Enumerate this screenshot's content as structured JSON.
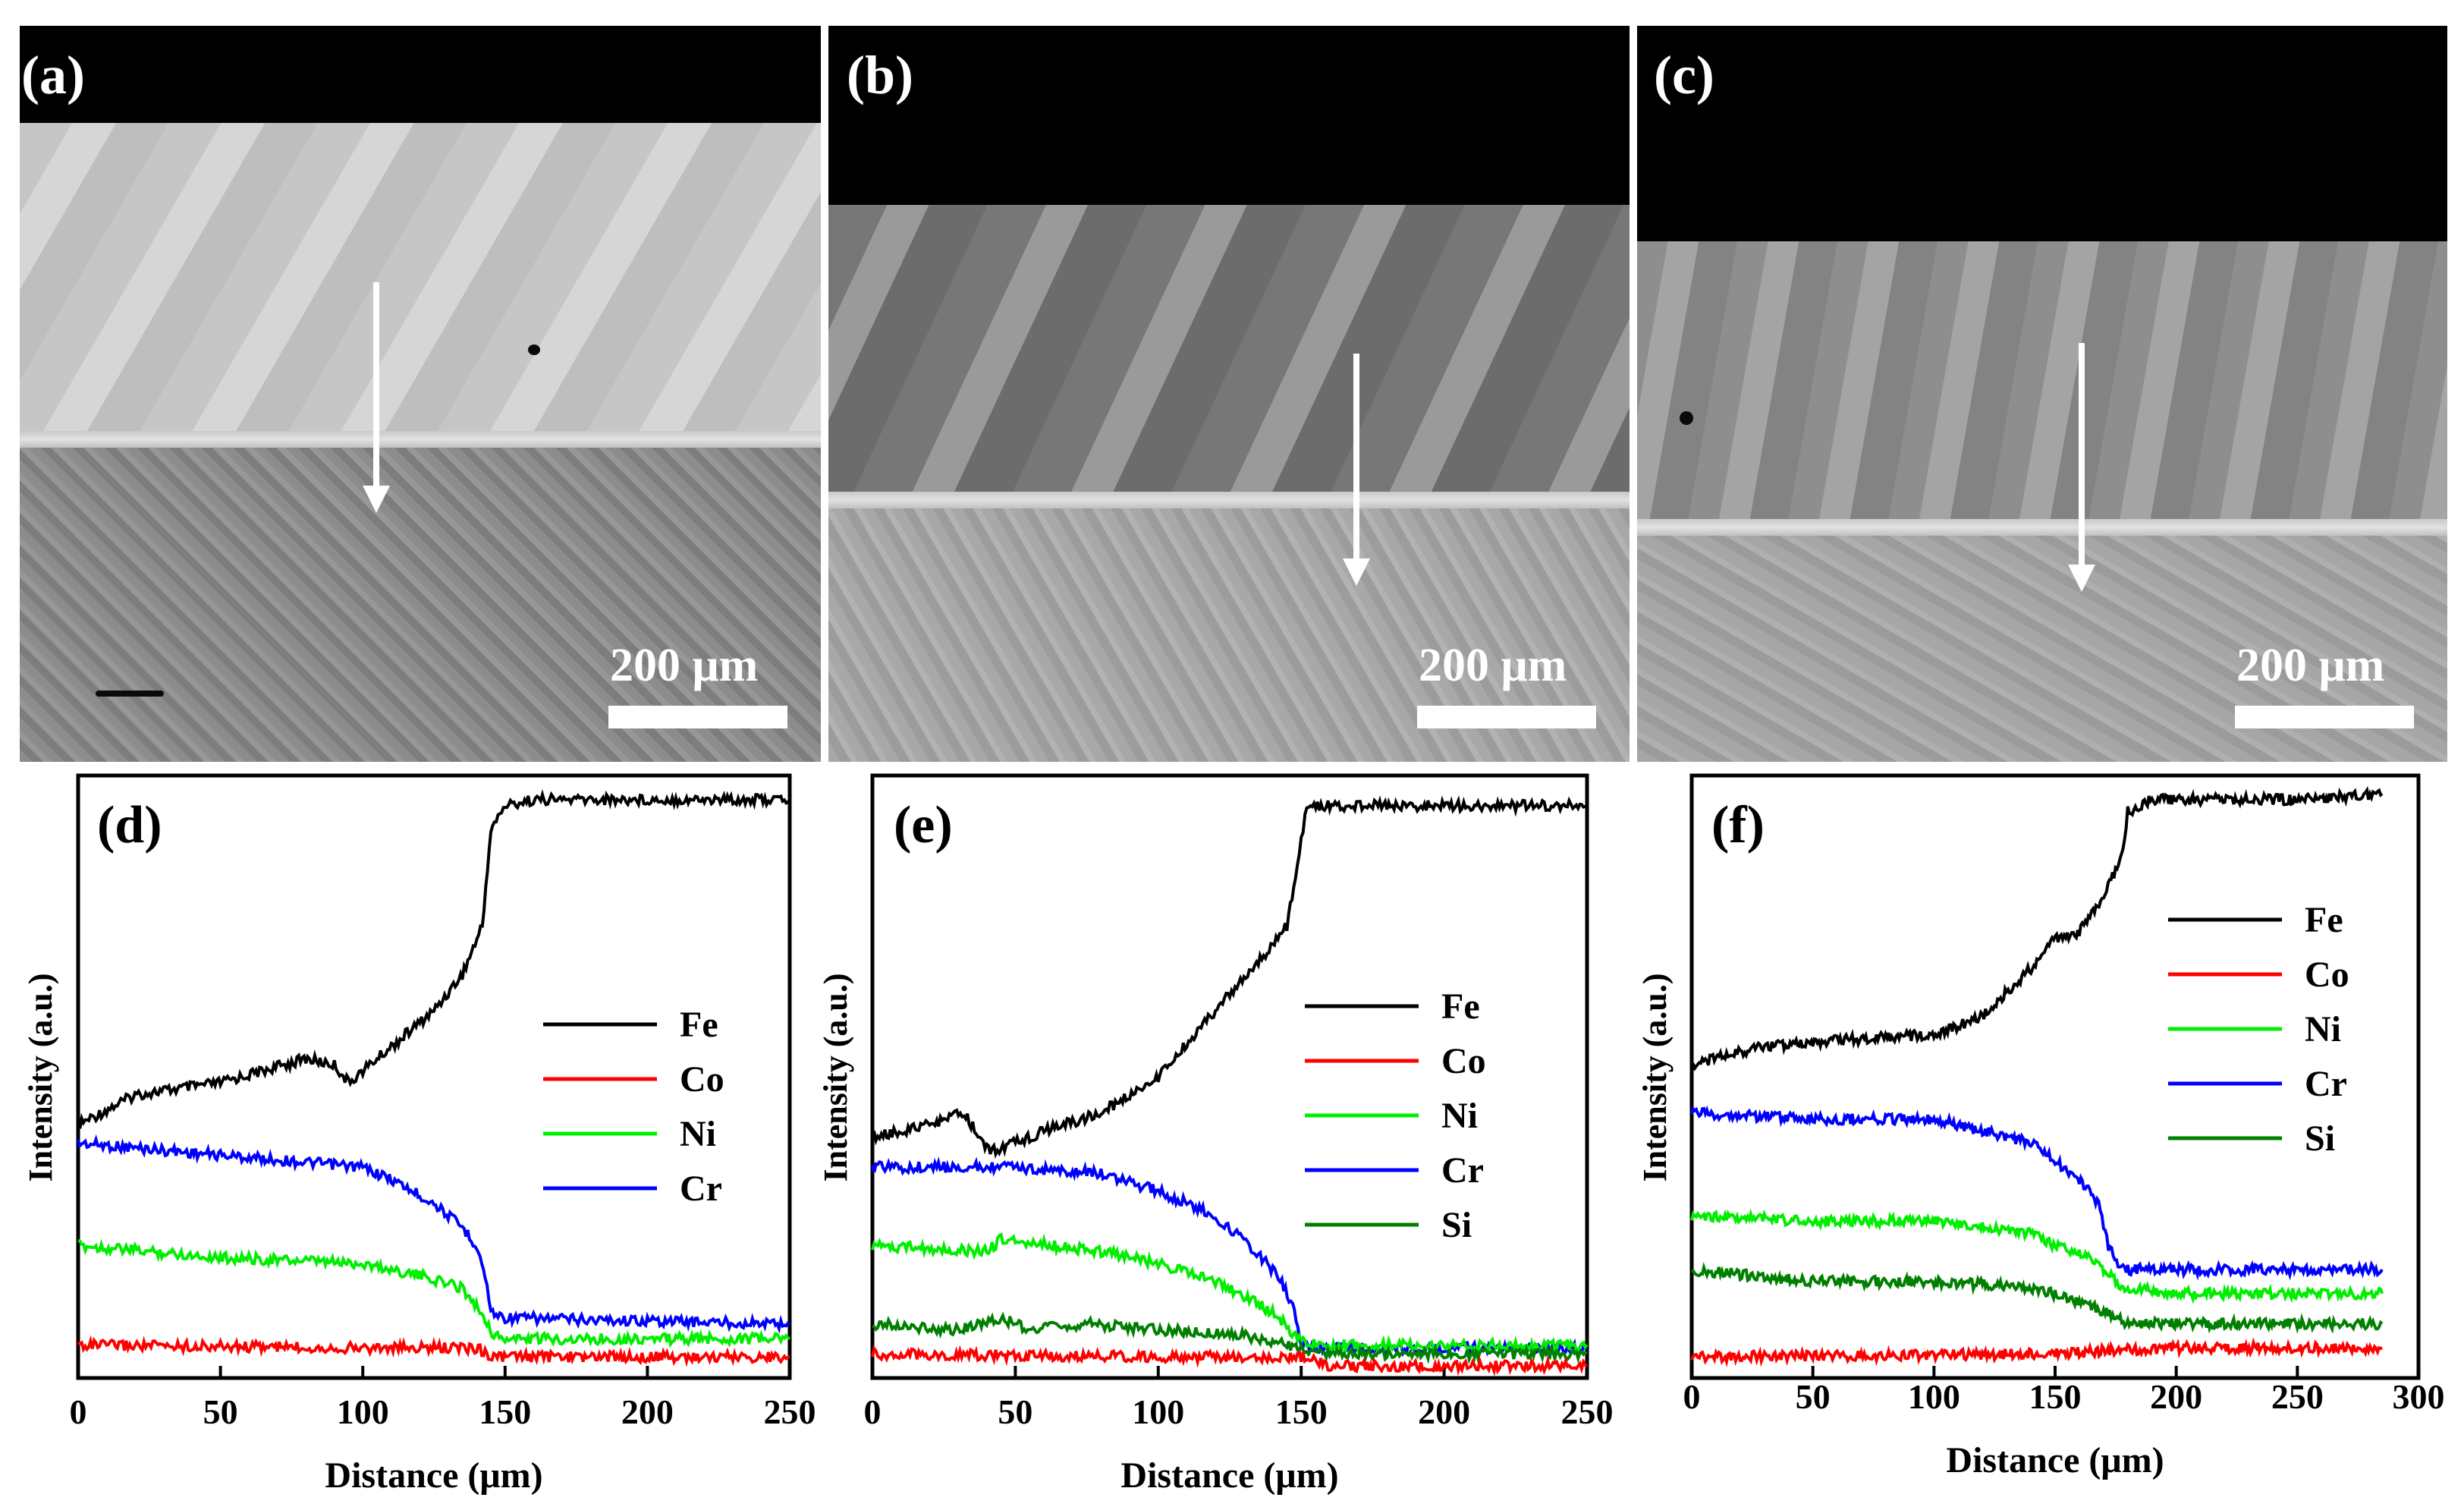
{
  "micrographs": [
    {
      "label": "(a)",
      "scale_bar": "200 μm"
    },
    {
      "label": "(b)",
      "scale_bar": "200 μm"
    },
    {
      "label": "(c)",
      "scale_bar": "200 μm"
    }
  ],
  "chart_data": [
    {
      "type": "line",
      "panel": "(d)",
      "xlabel": "Distance (μm)",
      "ylabel": "Intensity (a.u.)",
      "xlim": [
        0,
        250
      ],
      "ylim": [
        0,
        100
      ],
      "xticks": [
        0,
        50,
        100,
        150,
        200,
        250
      ],
      "legend": [
        "Fe",
        "Co",
        "Ni",
        "Cr"
      ],
      "series": [
        {
          "name": "Fe",
          "color": "#000000",
          "x": [
            0,
            20,
            50,
            80,
            90,
            95,
            110,
            125,
            135,
            142,
            145,
            150,
            160,
            200,
            250
          ],
          "y": [
            42,
            47,
            49,
            53,
            52,
            49,
            55,
            61,
            67,
            75,
            91,
            95,
            96,
            96,
            96
          ]
        },
        {
          "name": "Cr",
          "color": "#0000ff",
          "x": [
            0,
            50,
            100,
            110,
            125,
            135,
            140,
            143,
            145,
            150,
            200,
            250
          ],
          "y": [
            39,
            37,
            35,
            33,
            29,
            25,
            22,
            17,
            11,
            10,
            9.5,
            9
          ]
        },
        {
          "name": "Ni",
          "color": "#00ee00",
          "x": [
            0,
            50,
            100,
            120,
            135,
            143,
            146,
            150,
            200,
            250
          ],
          "y": [
            22,
            20,
            19,
            17,
            15,
            10,
            7,
            6.5,
            6.5,
            6.5
          ]
        },
        {
          "name": "Co",
          "color": "#ff0000",
          "x": [
            0,
            100,
            140,
            146,
            200,
            250
          ],
          "y": [
            5.5,
            5,
            5,
            3.5,
            3.5,
            3.5
          ]
        }
      ]
    },
    {
      "type": "line",
      "panel": "(e)",
      "xlabel": "Distance (μm)",
      "ylabel": "Intensity (a.u.)",
      "xlim": [
        0,
        250
      ],
      "ylim": [
        0,
        100
      ],
      "xticks": [
        0,
        50,
        100,
        150,
        200,
        250
      ],
      "legend": [
        "Fe",
        "Co",
        "Ni",
        "Cr",
        "Si"
      ],
      "series": [
        {
          "name": "Fe",
          "color": "#000000",
          "x": [
            0,
            20,
            32,
            40,
            45,
            60,
            80,
            100,
            120,
            135,
            145,
            148,
            152,
            160,
            200,
            250
          ],
          "y": [
            40,
            42,
            44,
            38,
            38,
            41,
            44,
            50,
            61,
            69,
            75,
            83,
            95,
            95,
            95,
            95
          ]
        },
        {
          "name": "Cr",
          "color": "#0000ff",
          "x": [
            0,
            45,
            80,
            100,
            115,
            130,
            142,
            147,
            150,
            153,
            160,
            250
          ],
          "y": [
            35,
            35,
            34,
            31,
            28,
            23,
            17,
            12,
            6,
            5,
            5,
            5
          ]
        },
        {
          "name": "Ni",
          "color": "#00ee00",
          "x": [
            0,
            40,
            45,
            80,
            100,
            120,
            140,
            148,
            152,
            160,
            250
          ],
          "y": [
            22,
            21,
            23,
            21,
            19,
            16,
            11,
            7,
            6,
            5.5,
            5.5
          ]
        },
        {
          "name": "Si",
          "color": "#008000",
          "x": [
            0,
            30,
            45,
            55,
            75,
            100,
            130,
            150,
            160,
            250
          ],
          "y": [
            9,
            8,
            10,
            8,
            9,
            8,
            7,
            5,
            4,
            4
          ]
        },
        {
          "name": "Co",
          "color": "#ff0000",
          "x": [
            0,
            100,
            150,
            160,
            250
          ],
          "y": [
            4,
            3.5,
            3.5,
            2,
            2
          ]
        }
      ]
    },
    {
      "type": "line",
      "panel": "(f)",
      "xlabel": "Distance (μm)",
      "ylabel": "Intensity (a.u.)",
      "xlim": [
        0,
        300
      ],
      "ylim": [
        0,
        100
      ],
      "xticks": [
        0,
        50,
        100,
        150,
        200,
        250,
        300
      ],
      "legend": [
        "Fe",
        "Co",
        "Ni",
        "Cr",
        "Si"
      ],
      "series": [
        {
          "name": "Fe",
          "color": "#000000",
          "x": [
            0,
            30,
            60,
            100,
            120,
            140,
            150,
            160,
            170,
            178,
            180,
            190,
            250,
            285
          ],
          "y": [
            52,
            55,
            56,
            57,
            60,
            68,
            73,
            74,
            80,
            87,
            94,
            96,
            96,
            97
          ]
        },
        {
          "name": "Cr",
          "color": "#0000ff",
          "x": [
            0,
            50,
            100,
            140,
            150,
            160,
            168,
            172,
            176,
            180,
            200,
            285
          ],
          "y": [
            44,
            43,
            43,
            39,
            36,
            33,
            29,
            22,
            19,
            18,
            18,
            18
          ]
        },
        {
          "name": "Ni",
          "color": "#00ee00",
          "x": [
            0,
            50,
            100,
            140,
            150,
            165,
            175,
            180,
            200,
            285
          ],
          "y": [
            27,
            26,
            26,
            24,
            22,
            20,
            16,
            15,
            14,
            14
          ]
        },
        {
          "name": "Si",
          "color": "#008000",
          "x": [
            0,
            50,
            100,
            140,
            150,
            165,
            175,
            180,
            200,
            285
          ],
          "y": [
            18,
            16,
            16,
            15,
            14,
            12,
            10,
            9,
            9,
            9
          ]
        },
        {
          "name": "Co",
          "color": "#ff0000",
          "x": [
            0,
            150,
            170,
            200,
            285
          ],
          "y": [
            3.5,
            4,
            4.5,
            5,
            5
          ]
        }
      ]
    }
  ]
}
